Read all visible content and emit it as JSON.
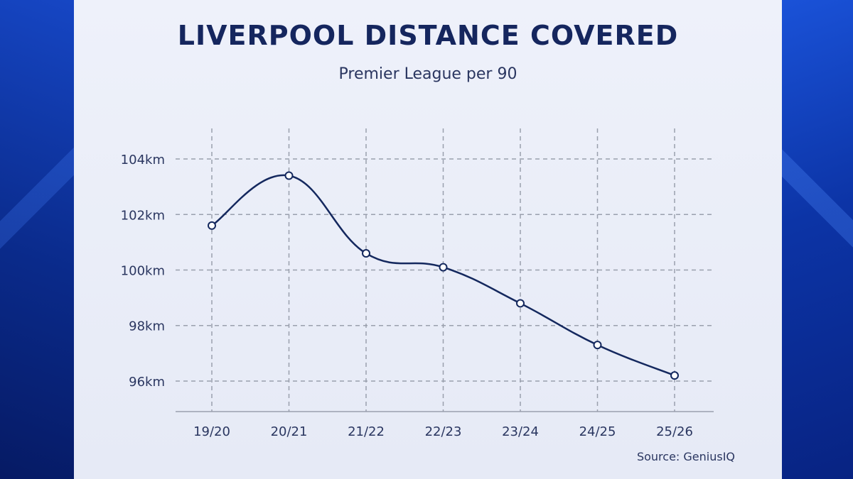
{
  "chart_data": {
    "type": "line",
    "title": "LIVERPOOL DISTANCE COVERED",
    "subtitle": "Premier League per 90",
    "categories": [
      "19/20",
      "20/21",
      "21/22",
      "22/23",
      "23/24",
      "24/25",
      "25/26"
    ],
    "values": [
      101.6,
      103.4,
      100.6,
      100.1,
      98.8,
      97.3,
      96.2
    ],
    "y_ticks": [
      96,
      98,
      100,
      102,
      104
    ],
    "y_tick_suffix": "km",
    "ylim": [
      94.9,
      105.1
    ],
    "grid": true,
    "smooth": true,
    "line_color": "#14285e",
    "grid_color": "#9aa0ad",
    "source": "Source: GeniusIQ"
  }
}
